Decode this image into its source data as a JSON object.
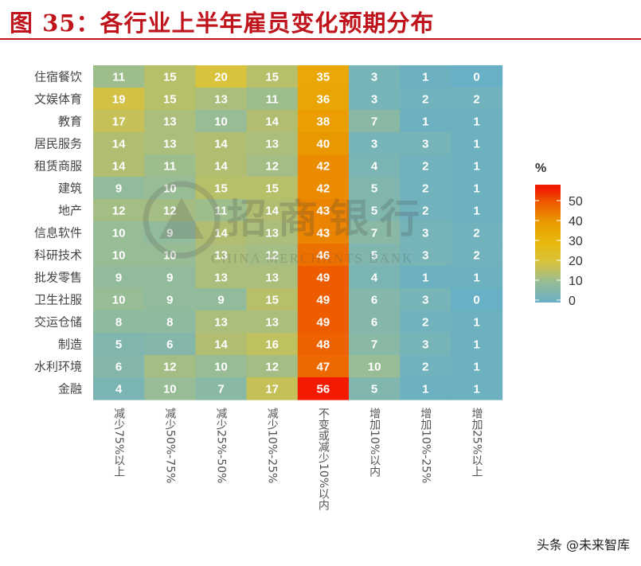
{
  "title": "图 35：各行业上半年雇员变化预期分布",
  "watermark": {
    "logo_text": "招商银行",
    "logo_subtext": "CHINA MERCHANTS BANK"
  },
  "footer": "头条 @未来智库",
  "chart_data": {
    "type": "heatmap",
    "title": "",
    "rows": [
      "住宿餐饮",
      "文娱体育",
      "教育",
      "居民服务",
      "租赁商服",
      "建筑",
      "地产",
      "信息软件",
      "科研技术",
      "批发零售",
      "卫生社服",
      "交运仓储",
      "制造",
      "水利环境",
      "金融"
    ],
    "columns": [
      "减少75%以上",
      "减少50%-75%",
      "减少25%-50%",
      "减少10%-25%",
      "不变或减少10%以内",
      "增加10%以内",
      "增加10%-25%",
      "增加25%以上"
    ],
    "values": [
      [
        11,
        15,
        20,
        15,
        35,
        3,
        1,
        0
      ],
      [
        19,
        15,
        13,
        11,
        36,
        3,
        2,
        2
      ],
      [
        17,
        13,
        10,
        14,
        38,
        7,
        1,
        1
      ],
      [
        14,
        13,
        14,
        13,
        40,
        3,
        3,
        1
      ],
      [
        14,
        11,
        14,
        12,
        42,
        4,
        2,
        1
      ],
      [
        9,
        10,
        15,
        15,
        42,
        5,
        2,
        1
      ],
      [
        12,
        12,
        11,
        14,
        43,
        5,
        2,
        1
      ],
      [
        10,
        9,
        14,
        13,
        43,
        7,
        3,
        2
      ],
      [
        10,
        10,
        13,
        12,
        46,
        5,
        3,
        2
      ],
      [
        9,
        9,
        13,
        13,
        49,
        4,
        1,
        1
      ],
      [
        10,
        9,
        9,
        15,
        49,
        6,
        3,
        0
      ],
      [
        8,
        8,
        13,
        13,
        49,
        6,
        2,
        1
      ],
      [
        5,
        6,
        14,
        16,
        48,
        7,
        3,
        1
      ],
      [
        6,
        12,
        10,
        12,
        47,
        10,
        2,
        1
      ],
      [
        4,
        10,
        7,
        17,
        56,
        5,
        1,
        1
      ]
    ],
    "legend": {
      "title": "%",
      "ticks": [
        0,
        10,
        20,
        30,
        40,
        50
      ],
      "range": [
        0,
        56
      ],
      "placement": "right"
    },
    "colorscale": [
      [
        0,
        "#68b0c6"
      ],
      [
        10,
        "#97bc96"
      ],
      [
        20,
        "#d9c23c"
      ],
      [
        30,
        "#e8b80a"
      ],
      [
        40,
        "#ea9800"
      ],
      [
        50,
        "#ee5500"
      ],
      [
        56,
        "#f21a00"
      ]
    ]
  }
}
